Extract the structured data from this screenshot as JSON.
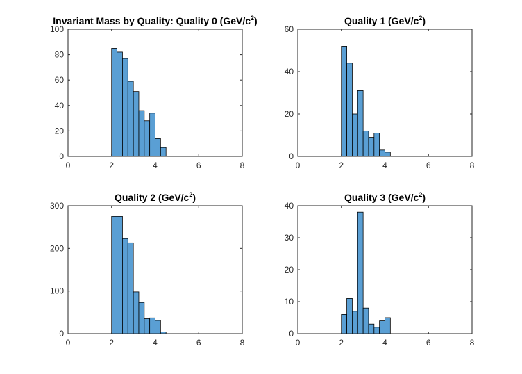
{
  "chart_data": [
    {
      "type": "bar",
      "title": "Invariant Mass by Quality: Quality 0 (GeV/c",
      "title_sup": "2",
      "title_suffix": ")",
      "bin_width": 0.25,
      "bin_edges_start": 2.0,
      "values": [
        85,
        82,
        77,
        59,
        51,
        36,
        28,
        34,
        14,
        7
      ],
      "xlim": [
        0,
        8
      ],
      "ylim": [
        0,
        100
      ],
      "xticks": [
        0,
        2,
        4,
        6,
        8
      ],
      "yticks": [
        0,
        20,
        40,
        60,
        80,
        100
      ],
      "color": "#5a9fd4"
    },
    {
      "type": "bar",
      "title": "Quality 1 (GeV/c",
      "title_sup": "2",
      "title_suffix": ")",
      "bin_width": 0.25,
      "bin_edges_start": 2.0,
      "values": [
        52,
        44,
        20,
        31,
        12,
        9,
        11,
        3,
        2
      ],
      "xlim": [
        0,
        8
      ],
      "ylim": [
        0,
        60
      ],
      "xticks": [
        0,
        2,
        4,
        6,
        8
      ],
      "yticks": [
        0,
        20,
        40,
        60
      ],
      "color": "#5a9fd4"
    },
    {
      "type": "bar",
      "title": "Quality 2 (GeV/c",
      "title_sup": "2",
      "title_suffix": ")",
      "bin_width": 0.25,
      "bin_edges_start": 2.0,
      "values": [
        275,
        275,
        223,
        213,
        98,
        73,
        35,
        37,
        31,
        4
      ],
      "xlim": [
        0,
        8
      ],
      "ylim": [
        0,
        300
      ],
      "xticks": [
        0,
        2,
        4,
        6,
        8
      ],
      "yticks": [
        0,
        100,
        200,
        300
      ],
      "color": "#5a9fd4"
    },
    {
      "type": "bar",
      "title": "Quality 3 (GeV/c",
      "title_sup": "2",
      "title_suffix": ")",
      "bin_width": 0.25,
      "bin_edges_start": 2.0,
      "values": [
        6,
        11,
        7,
        38,
        8,
        3,
        2,
        4,
        5
      ],
      "xlim": [
        0,
        8
      ],
      "ylim": [
        0,
        40
      ],
      "xticks": [
        0,
        2,
        4,
        6,
        8
      ],
      "yticks": [
        0,
        10,
        20,
        30,
        40
      ],
      "color": "#5a9fd4"
    }
  ]
}
